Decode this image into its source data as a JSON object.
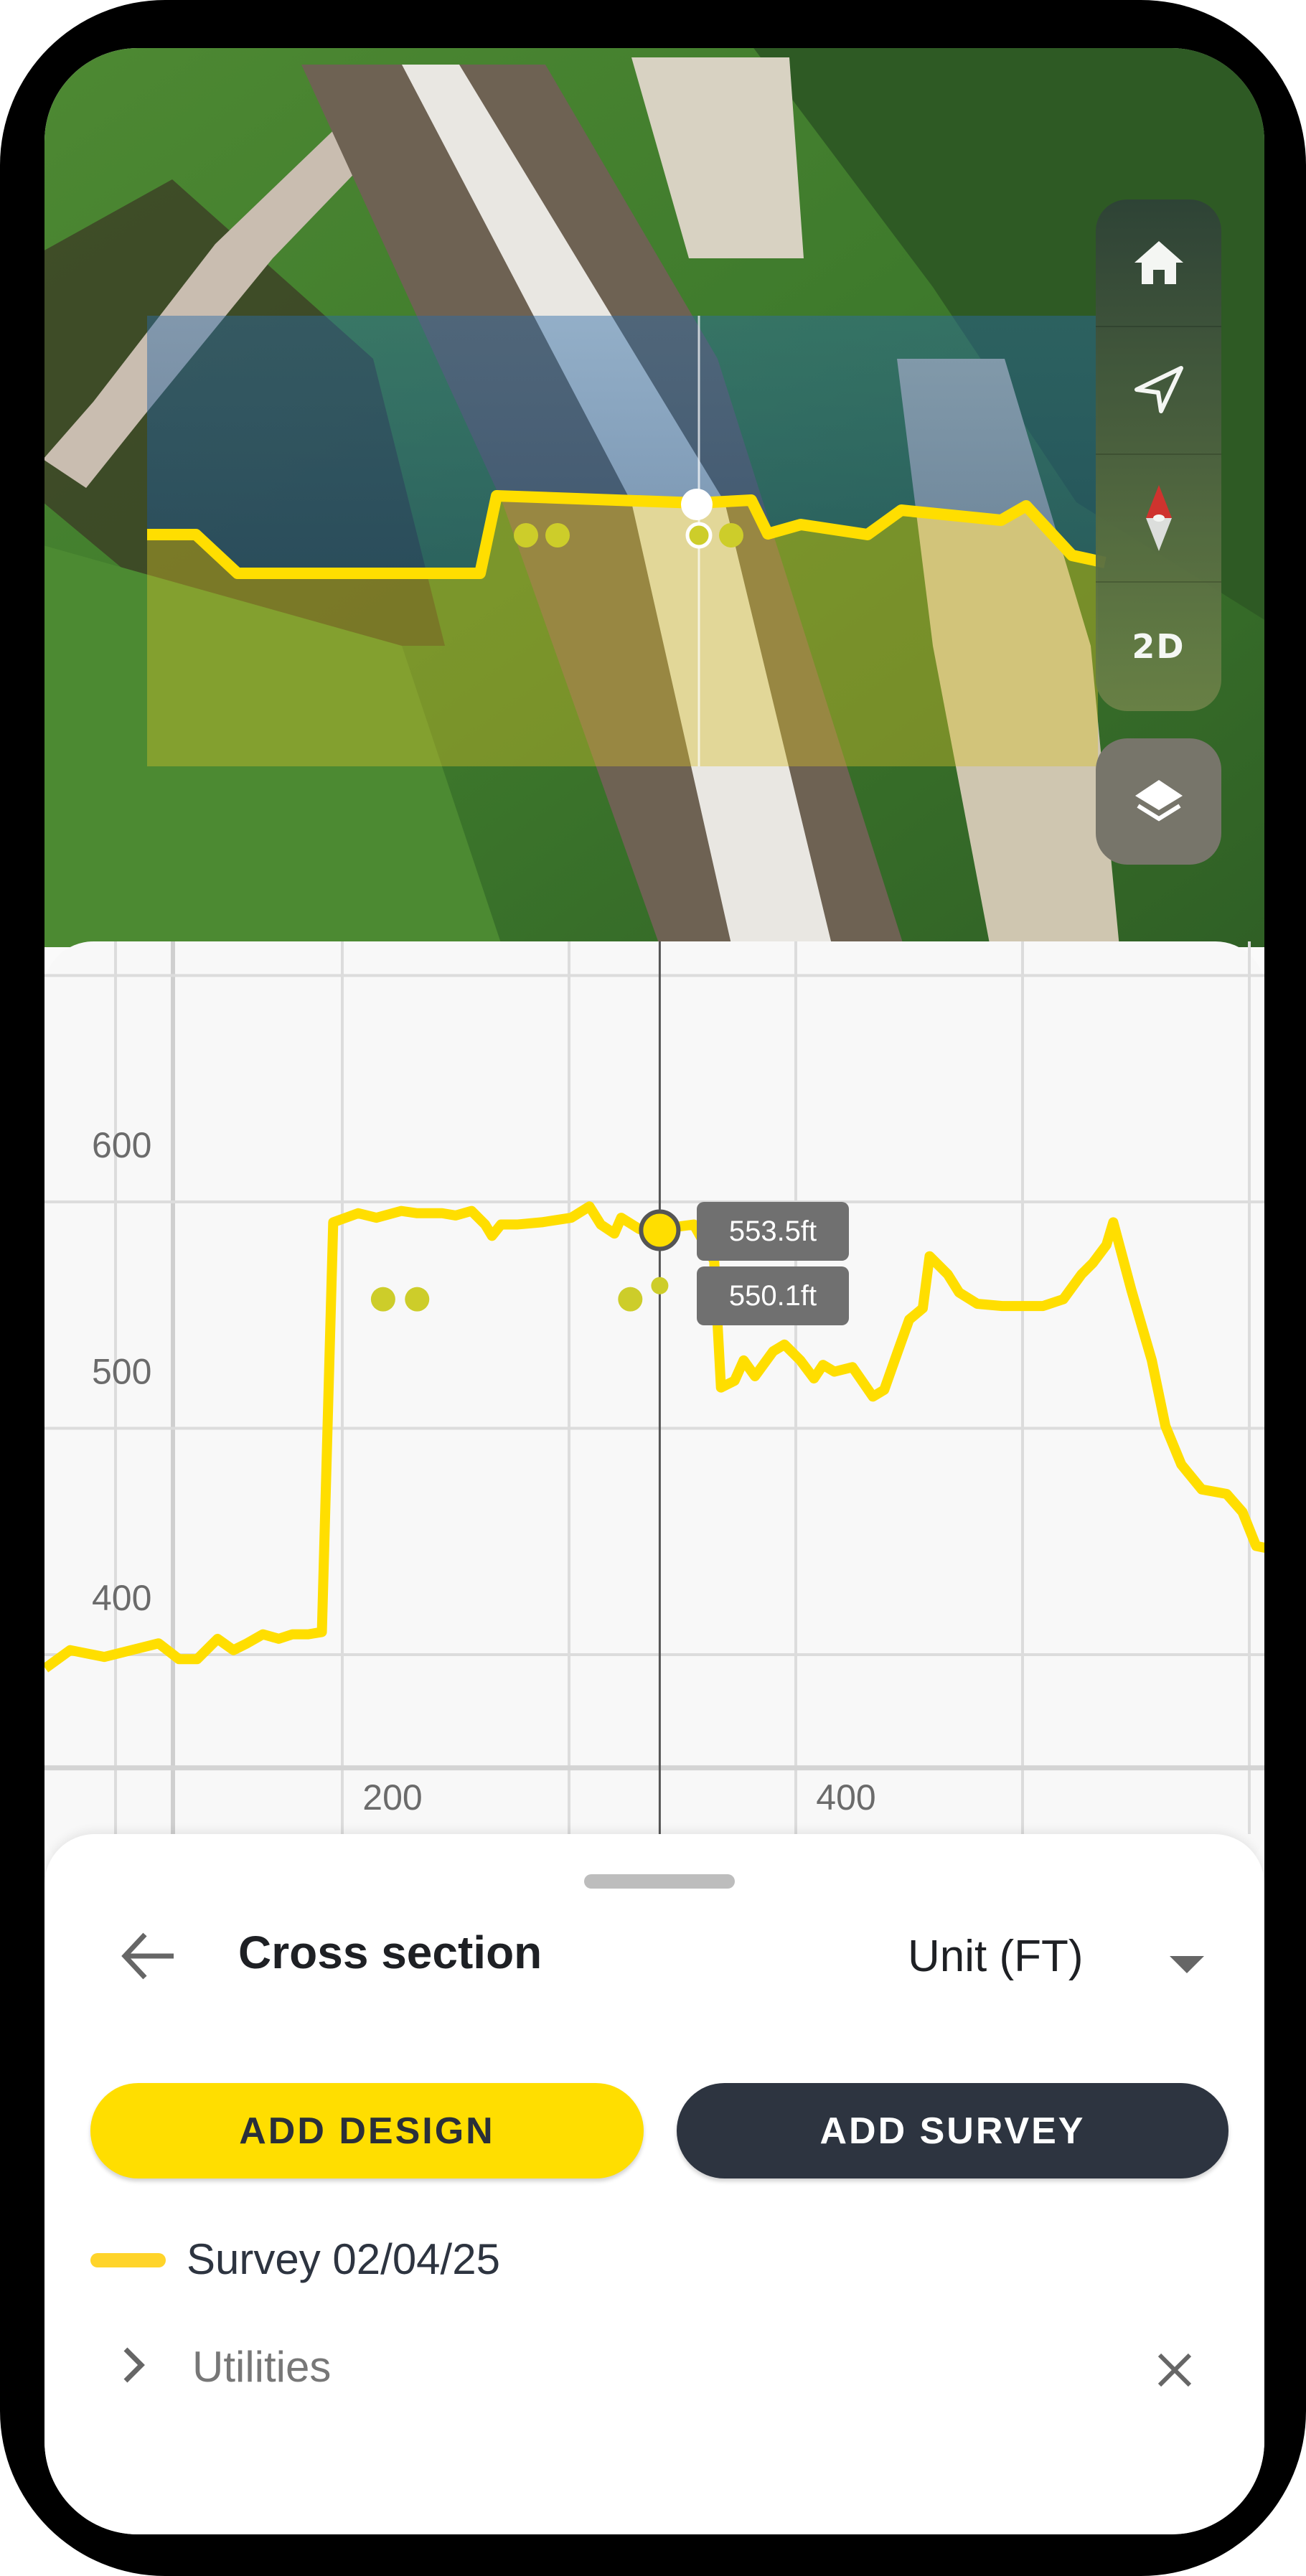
{
  "map": {
    "controls": [
      {
        "icon": "home-icon"
      },
      {
        "icon": "navigation-arrow-icon"
      },
      {
        "icon": "compass-icon"
      },
      {
        "icon": "2d-toggle",
        "label": "2D"
      }
    ],
    "layers_icon": "layers-icon",
    "colors": {
      "profile_line": "#ffde00",
      "control_bg_top": "#2f4238",
      "control_bg_bottom": "#6b8247",
      "layers_bg": "#77756a"
    }
  },
  "chart_data": {
    "type": "line",
    "title": "",
    "xlabel": "",
    "ylabel": "",
    "x_ticks": [
      200,
      400
    ],
    "y_ticks": [
      400,
      500,
      600
    ],
    "xlim": [
      80,
      610
    ],
    "ylim": [
      350,
      700
    ],
    "grid": true,
    "series": [
      {
        "color": "#ffde00",
        "x": [
          69,
          80,
          95,
          119,
          128,
          136,
          145,
          152,
          158,
          165,
          172,
          178,
          185,
          191,
          196,
          207,
          215,
          226,
          233,
          244,
          250,
          257,
          263,
          266,
          270,
          277,
          288,
          301,
          309,
          314,
          320,
          323,
          331,
          340,
          355,
          364,
          367,
          373,
          377,
          382,
          390,
          395,
          402,
          408,
          412,
          417,
          425,
          434,
          439,
          445,
          450,
          456,
          459,
          467,
          472,
          480,
          491,
          509,
          518,
          526,
          531,
          537,
          540,
          548,
          557,
          563,
          570,
          579,
          590,
          597,
          603,
          608
        ],
        "y": [
          394,
          402,
          399,
          405,
          398,
          398,
          407,
          402,
          405,
          409,
          407,
          409,
          409,
          410,
          591,
          595,
          593,
          596,
          595,
          595,
          594,
          596,
          590,
          585,
          590,
          590,
          591,
          593,
          598,
          590,
          586,
          593,
          588,
          588,
          590,
          574,
          518,
          521,
          530,
          523,
          534,
          537,
          530,
          522,
          528,
          525,
          527,
          514,
          517,
          534,
          548,
          553,
          576,
          568,
          560,
          555,
          554,
          554,
          557,
          568,
          573,
          581,
          591,
          561,
          530,
          501,
          484,
          473,
          471,
          463,
          448,
          447
        ]
      }
    ],
    "points": {
      "color": "#cdcd2a",
      "x": [
        218,
        233,
        327,
        340
      ],
      "y": [
        557,
        557,
        557,
        563
      ]
    },
    "cursor": {
      "x": 340,
      "y": 587.5
    },
    "tooltips": [
      "553.5ft",
      "550.1ft"
    ]
  },
  "sheet": {
    "title": "Cross section",
    "unit_select": "Unit (FT)",
    "add_design": "ADD DESIGN",
    "add_survey": "ADD SURVEY",
    "legend": [
      {
        "label": "Survey 02/04/25",
        "color": "#ffd42a"
      }
    ],
    "group": {
      "label": "Utilities"
    },
    "colors": {
      "accent": "#ffde00",
      "dark": "#2d3440"
    }
  }
}
